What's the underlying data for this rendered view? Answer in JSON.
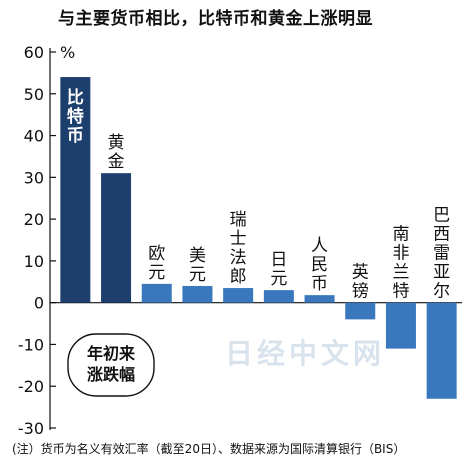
{
  "title": "与主要货币相比，比特币和黄金上涨明显",
  "footnote": "(注）货币为名义有效汇率（截至20日）、数据来源为国际清算银行（BIS）",
  "badge": "年初来\n涨跌幅",
  "watermark": "日经中文网",
  "chart_data": {
    "type": "bar",
    "title": "与主要货币相比，比特币和黄金上涨明显",
    "ylabel": "%",
    "xlabel": "",
    "ylim": [
      -30,
      60
    ],
    "yticks": [
      60,
      50,
      40,
      30,
      20,
      10,
      0,
      -10,
      -20,
      -30
    ],
    "grid": false,
    "categories": [
      "比特币",
      "黄金",
      "欧元",
      "美元",
      "瑞士法郎",
      "日元",
      "人民币",
      "英镑",
      "南非兰特",
      "巴西雷亚尔"
    ],
    "values": [
      54,
      31,
      4.5,
      4,
      3.5,
      3,
      1.8,
      -4,
      -11,
      -23
    ],
    "colors": {
      "highlight": "#1d3f6e",
      "bar": "#3a78bd",
      "axis": "#111111",
      "label_on_bar": "#ffffff"
    },
    "highlight_count": 2
  }
}
